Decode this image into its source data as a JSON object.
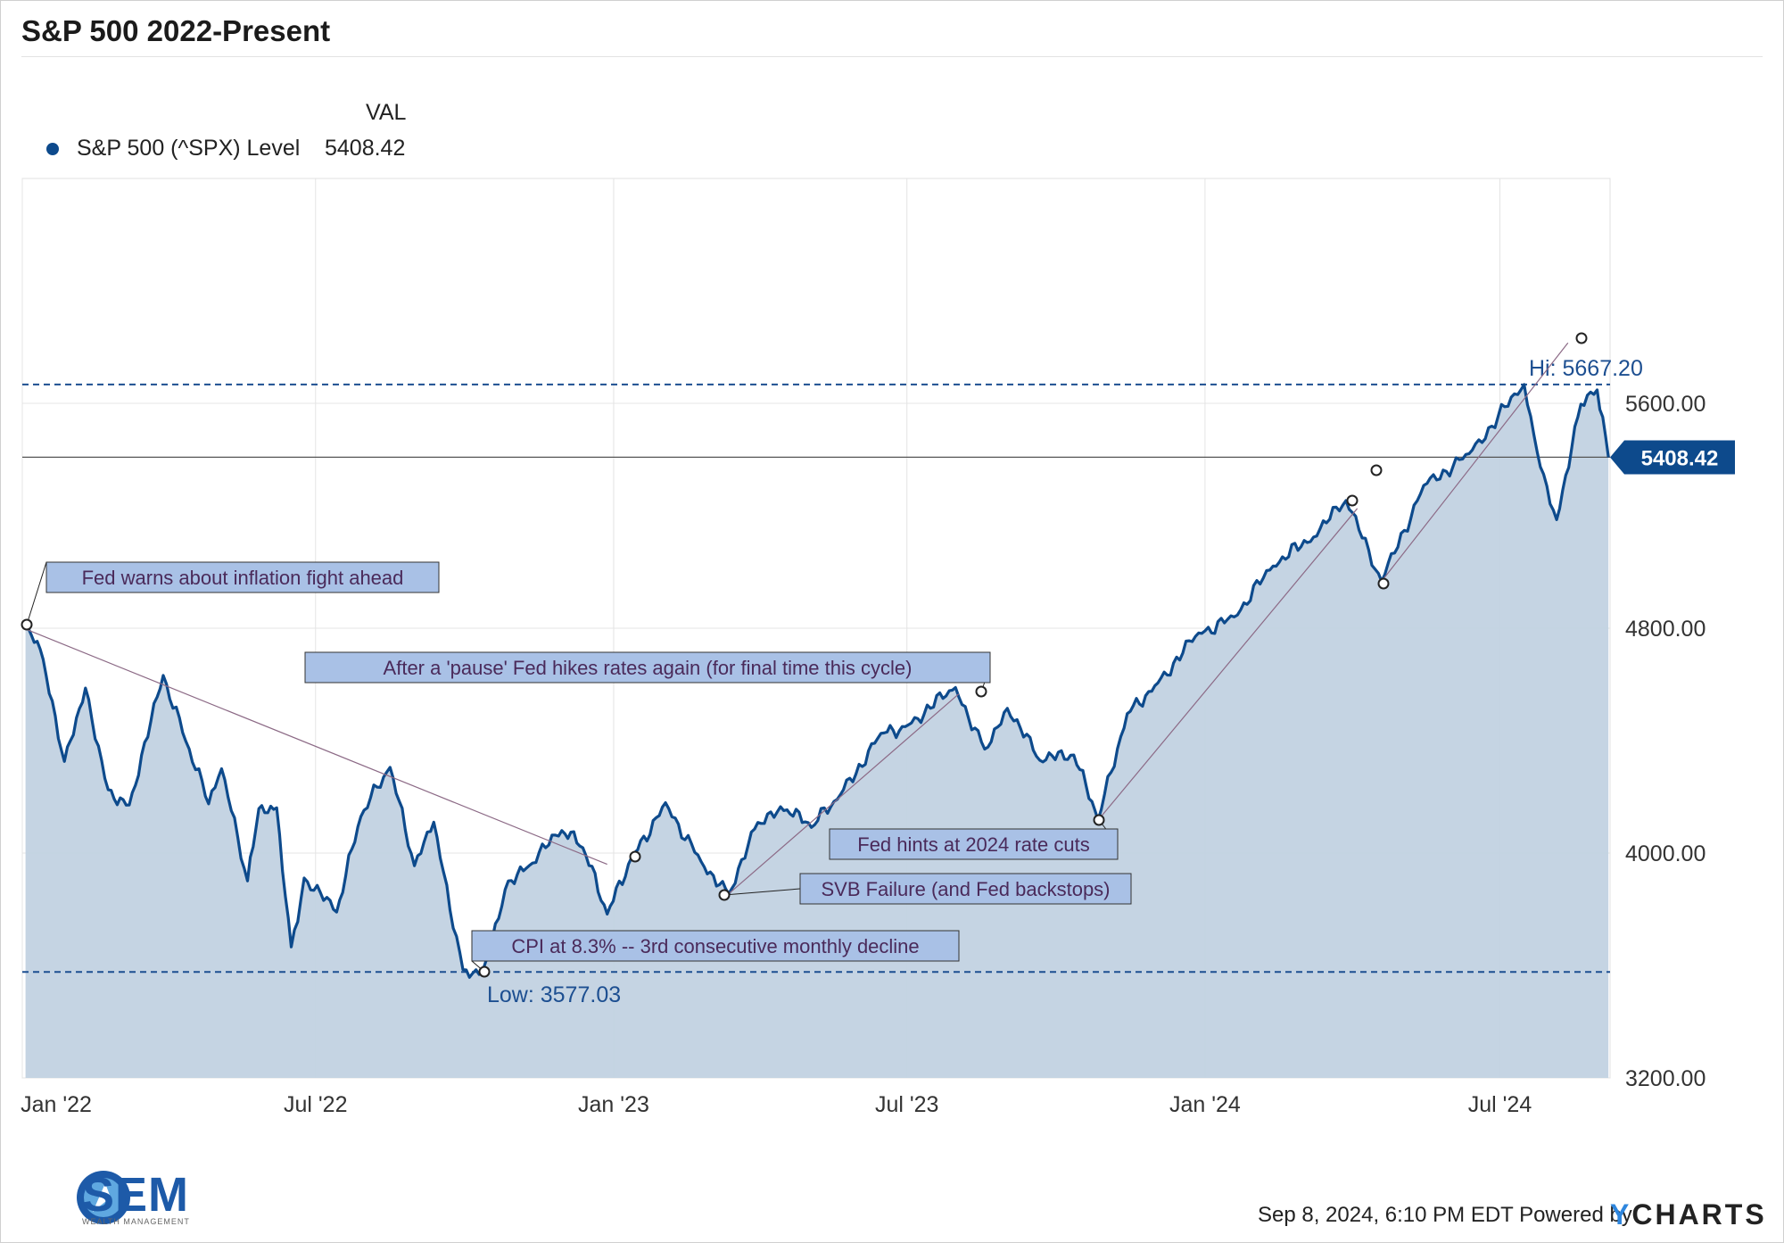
{
  "title": "S&P 500 2022-Present",
  "legend": {
    "column_header": "VAL",
    "series_label": "S&P 500 (^SPX) Level",
    "series_value": "5408.42",
    "series_color": "#0d4a8c"
  },
  "footer": {
    "timestamp": "Sep 8, 2024, 6:10 PM EDT Powered by",
    "brand_y": "Y",
    "brand_rest": "CHARTS"
  },
  "logo": {
    "name": "SEM",
    "subtitle": "WEALTH MANAGEMENT"
  },
  "chart_data": {
    "type": "area",
    "title": "S&P 500 2022-Present",
    "series": [
      {
        "name": "S&P 500 (^SPX) Level",
        "color": "#0d4a8c"
      }
    ],
    "x_ticks": [
      "Jan '22",
      "Jul '22",
      "Jan '23",
      "Jul '23",
      "Jan '24",
      "Jul '24"
    ],
    "y_ticks": [
      "3200.00",
      "4000.00",
      "4800.00",
      "5600.00"
    ],
    "ylim": [
      3200,
      6400
    ],
    "x_range": [
      "2022-01-01",
      "2024-09-07"
    ],
    "grid": true,
    "points": [
      [
        "2022-01-03",
        4797
      ],
      [
        "2022-01-12",
        4726
      ],
      [
        "2022-01-27",
        4326
      ],
      [
        "2022-02-09",
        4587
      ],
      [
        "2022-02-23",
        4225
      ],
      [
        "2022-03-08",
        4171
      ],
      [
        "2022-03-29",
        4632
      ],
      [
        "2022-04-12",
        4397
      ],
      [
        "2022-04-26",
        4175
      ],
      [
        "2022-05-04",
        4300
      ],
      [
        "2022-05-20",
        3901
      ],
      [
        "2022-05-27",
        4158
      ],
      [
        "2022-06-07",
        4161
      ],
      [
        "2022-06-16",
        3666
      ],
      [
        "2022-06-24",
        3911
      ],
      [
        "2022-07-14",
        3790
      ],
      [
        "2022-07-29",
        4130
      ],
      [
        "2022-08-16",
        4305
      ],
      [
        "2022-08-31",
        3955
      ],
      [
        "2022-09-12",
        4110
      ],
      [
        "2022-09-30",
        3585
      ],
      [
        "2022-10-12",
        3577
      ],
      [
        "2022-10-28",
        3901
      ],
      [
        "2022-11-10",
        3956
      ],
      [
        "2022-11-30",
        4080
      ],
      [
        "2022-12-13",
        4019
      ],
      [
        "2022-12-28",
        3783
      ],
      [
        "2023-01-12",
        3983
      ],
      [
        "2023-02-02",
        4179
      ],
      [
        "2023-02-24",
        3970
      ],
      [
        "2023-03-13",
        3855
      ],
      [
        "2023-03-31",
        4109
      ],
      [
        "2023-04-18",
        4154
      ],
      [
        "2023-05-03",
        4091
      ],
      [
        "2023-05-19",
        4191
      ],
      [
        "2023-06-15",
        4426
      ],
      [
        "2023-06-30",
        4450
      ],
      [
        "2023-07-31",
        4589
      ],
      [
        "2023-08-18",
        4370
      ],
      [
        "2023-09-01",
        4515
      ],
      [
        "2023-09-21",
        4330
      ],
      [
        "2023-10-12",
        4349
      ],
      [
        "2023-10-27",
        4117
      ],
      [
        "2023-11-14",
        4496
      ],
      [
        "2023-12-01",
        4595
      ],
      [
        "2023-12-28",
        4783
      ],
      [
        "2024-01-19",
        4840
      ],
      [
        "2024-02-12",
        5021
      ],
      [
        "2024-03-08",
        5124
      ],
      [
        "2024-03-28",
        5254
      ],
      [
        "2024-04-19",
        4967
      ],
      [
        "2024-05-15",
        5308
      ],
      [
        "2024-06-12",
        5421
      ],
      [
        "2024-07-16",
        5667
      ],
      [
        "2024-07-24",
        5427
      ],
      [
        "2024-08-05",
        5186
      ],
      [
        "2024-08-20",
        5597
      ],
      [
        "2024-08-30",
        5648
      ],
      [
        "2024-09-06",
        5408
      ]
    ],
    "reference_lines": [
      {
        "label": "Hi: 5667.20",
        "value": 5667.2,
        "style": "dashed"
      },
      {
        "label": "Low: 3577.03",
        "value": 3577.03,
        "style": "dashed"
      },
      {
        "label": "",
        "value": 5408.42,
        "style": "solid"
      }
    ],
    "last_value_badge": "5408.42",
    "annotations": [
      {
        "text": "Fed warns about inflation fight ahead",
        "date": "2022-01-03",
        "value": 4797
      },
      {
        "text": "After a 'pause' Fed hikes rates again (for final time this cycle)",
        "date": "2023-07-26",
        "value": 4566
      },
      {
        "text": "Fed hints at 2024 rate cuts",
        "date": "2023-10-27",
        "value": 4117
      },
      {
        "text": "SVB Failure (and Fed backstops)",
        "date": "2023-03-13",
        "value": 3855
      },
      {
        "text": "CPI at 8.3% -- 3rd consecutive monthly decline",
        "date": "2022-10-12",
        "value": 3577
      }
    ],
    "colors": {
      "line": "#0d4a8c",
      "area": "#c2d2e2",
      "callout_fill": "#a9c1e6",
      "callout_text": "#4a2a5a",
      "trend": "#8c6a86"
    }
  }
}
